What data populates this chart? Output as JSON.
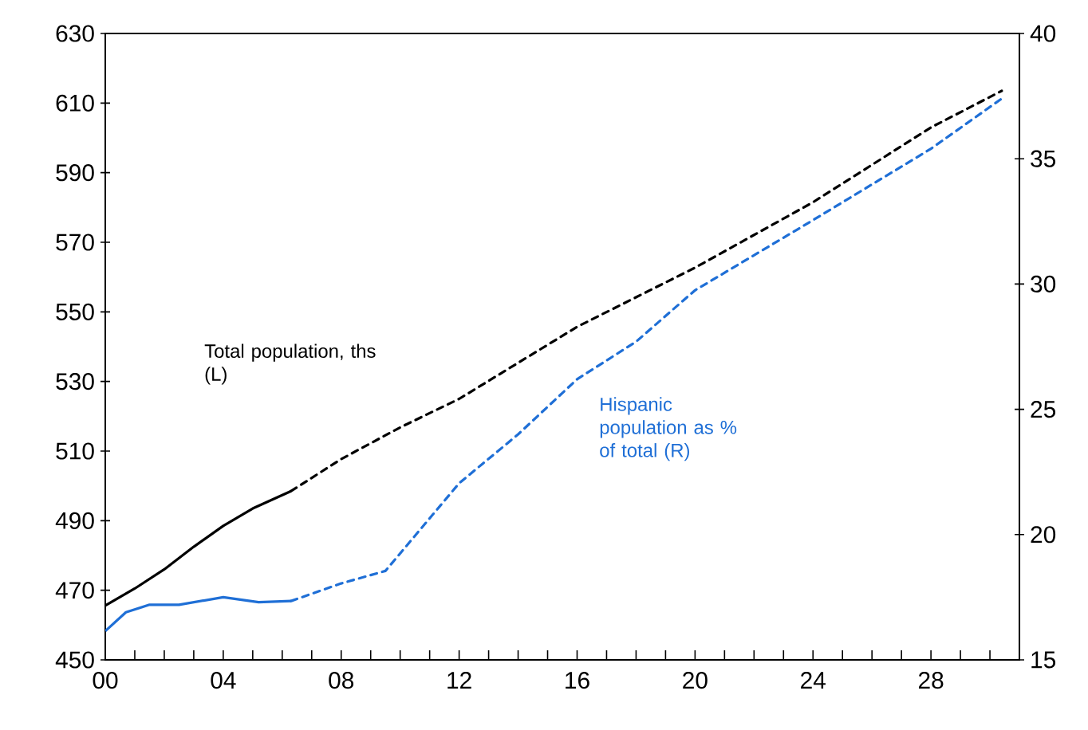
{
  "chart_data": {
    "type": "line",
    "xlim": [
      2000,
      2031
    ],
    "xticks": [
      {
        "value": 2000,
        "label": "00"
      },
      {
        "value": 2001,
        "label": null
      },
      {
        "value": 2002,
        "label": null
      },
      {
        "value": 2003,
        "label": null
      },
      {
        "value": 2004,
        "label": "04"
      },
      {
        "value": 2005,
        "label": null
      },
      {
        "value": 2006,
        "label": null
      },
      {
        "value": 2007,
        "label": null
      },
      {
        "value": 2008,
        "label": "08"
      },
      {
        "value": 2009,
        "label": null
      },
      {
        "value": 2010,
        "label": null
      },
      {
        "value": 2011,
        "label": null
      },
      {
        "value": 2012,
        "label": "12"
      },
      {
        "value": 2013,
        "label": null
      },
      {
        "value": 2014,
        "label": null
      },
      {
        "value": 2015,
        "label": null
      },
      {
        "value": 2016,
        "label": "16"
      },
      {
        "value": 2017,
        "label": null
      },
      {
        "value": 2018,
        "label": null
      },
      {
        "value": 2019,
        "label": null
      },
      {
        "value": 2020,
        "label": "20"
      },
      {
        "value": 2021,
        "label": null
      },
      {
        "value": 2022,
        "label": null
      },
      {
        "value": 2023,
        "label": null
      },
      {
        "value": 2024,
        "label": "24"
      },
      {
        "value": 2025,
        "label": null
      },
      {
        "value": 2026,
        "label": null
      },
      {
        "value": 2027,
        "label": null
      },
      {
        "value": 2028,
        "label": "28"
      },
      {
        "value": 2029,
        "label": null
      },
      {
        "value": 2030,
        "label": null
      }
    ],
    "ylim": [
      450,
      630
    ],
    "yticks": [
      450,
      470,
      490,
      510,
      530,
      550,
      570,
      590,
      610,
      630
    ],
    "y2lim": [
      15,
      40
    ],
    "y2ticks": [
      15,
      20,
      25,
      30,
      35,
      40
    ],
    "marker": "none",
    "grid": false,
    "series": [
      {
        "name": "Total population, ths (L)",
        "color": "#000000",
        "line_style": "solid",
        "axis": "y",
        "x": [
          2000,
          2001,
          2002,
          2003,
          2004,
          2005,
          2006.3
        ],
        "values": [
          465.6,
          470.5,
          476,
          482.5,
          488.5,
          493.5,
          498.5
        ]
      },
      {
        "color": "#000000",
        "line_style": "dashed",
        "axis": "y",
        "x": [
          2006.3,
          2008,
          2010,
          2012,
          2016,
          2020,
          2024,
          2028,
          2030.4
        ],
        "values": [
          498.5,
          507.7,
          516.8,
          525,
          545.7,
          562.7,
          581.5,
          603,
          613.5
        ]
      },
      {
        "name": "Hispanic population as % of total (R)",
        "color": "#1f6fd6",
        "line_style": "solid",
        "axis": "y2",
        "x": [
          2000,
          2000.7,
          2001.5,
          2002.5,
          2004,
          2005.2,
          2006.3
        ],
        "values": [
          16.15,
          16.9,
          17.2,
          17.2,
          17.5,
          17.3,
          17.35
        ]
      },
      {
        "color": "#1f6fd6",
        "line_style": "dashed",
        "axis": "y2",
        "x": [
          2006.3,
          2008,
          2009.5,
          2012,
          2014,
          2016,
          2018,
          2020,
          2024,
          2028,
          2030.4
        ],
        "values": [
          17.35,
          18.05,
          18.55,
          22.05,
          24.0,
          26.2,
          27.7,
          29.75,
          32.55,
          35.4,
          37.4
        ]
      }
    ]
  }
}
